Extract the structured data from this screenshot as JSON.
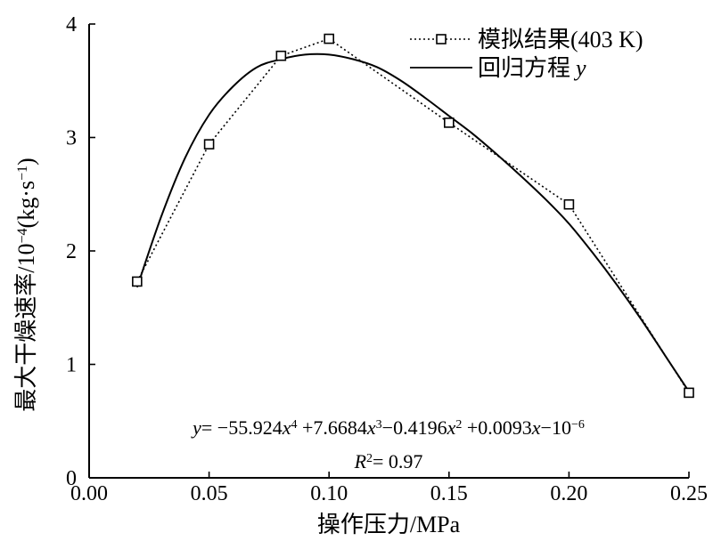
{
  "chart_data": {
    "type": "line",
    "xlabel": "操作压力/MPa",
    "ylabel": "最大干燥速率/10",
    "ylabel_exp": "−4",
    "ylabel_unit_open": "(kg·s",
    "ylabel_unit_exp": "−1",
    "ylabel_unit_close": ")",
    "xlim": [
      0.0,
      0.25
    ],
    "ylim": [
      0,
      4
    ],
    "x_ticks": [
      "0.00",
      "0.05",
      "0.10",
      "0.15",
      "0.20",
      "0.25"
    ],
    "x_tick_values": [
      0.0,
      0.05,
      0.1,
      0.15,
      0.2,
      0.25
    ],
    "y_ticks": [
      "0",
      "1",
      "2",
      "3",
      "4"
    ],
    "y_tick_values": [
      0,
      1,
      2,
      3,
      4
    ],
    "grid": false,
    "legend_position": "top-right",
    "series": [
      {
        "name": "模拟结果(403 K)",
        "style": "dotted-line-square-markers",
        "color": "#000000",
        "x": [
          0.02,
          0.05,
          0.08,
          0.1,
          0.15,
          0.2,
          0.25
        ],
        "y": [
          1.73,
          2.94,
          3.72,
          3.87,
          3.13,
          2.41,
          0.75
        ]
      },
      {
        "name": "回归方程",
        "name_italic": "y",
        "style": "solid-line",
        "color": "#000000",
        "x": [
          0.02,
          0.03,
          0.04,
          0.05,
          0.06,
          0.07,
          0.08,
          0.09,
          0.1,
          0.11,
          0.12,
          0.13,
          0.14,
          0.15,
          0.16,
          0.17,
          0.18,
          0.19,
          0.2,
          0.21,
          0.22,
          0.23,
          0.24,
          0.25
        ],
        "y": [
          1.68,
          2.3,
          2.82,
          3.2,
          3.45,
          3.62,
          3.69,
          3.73,
          3.73,
          3.69,
          3.62,
          3.5,
          3.35,
          3.19,
          3.03,
          2.85,
          2.66,
          2.46,
          2.24,
          1.98,
          1.7,
          1.4,
          1.08,
          0.76
        ]
      }
    ],
    "annotations": {
      "equation": {
        "y": "y",
        "eq1": "= −55.924",
        "x1": "x",
        "p1": "4",
        "eq2": " +7.6684",
        "x2": "x",
        "p2": "3",
        "eq3": "−0.4196",
        "x3": "x",
        "p3": "2",
        "eq4": " +0.0093",
        "x4": "x",
        "eq5": "−10",
        "p5": "−6"
      },
      "r2": {
        "r": "R",
        "p": "2",
        "val": "= 0.97"
      }
    }
  }
}
